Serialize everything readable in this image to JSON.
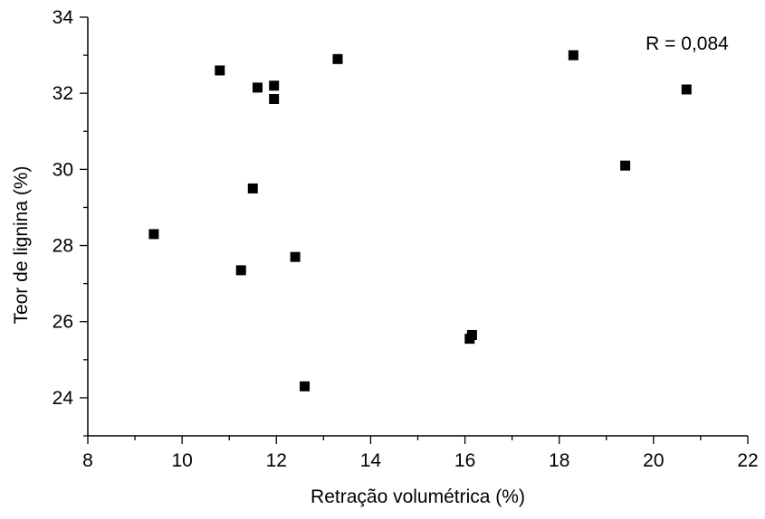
{
  "chart_data": {
    "type": "scatter",
    "xlabel": "Retração volumétrica (%)",
    "ylabel": "Teor de lignina (%)",
    "annotation": "R = 0,084",
    "xlim": [
      8,
      22
    ],
    "ylim": [
      23,
      34
    ],
    "xticks": [
      8,
      10,
      12,
      14,
      16,
      18,
      20,
      22
    ],
    "xtick_labels": [
      "8",
      "10",
      "12",
      "14",
      "16",
      "18",
      "20",
      "22"
    ],
    "yticks": [
      24,
      26,
      28,
      30,
      32,
      34
    ],
    "ytick_labels": [
      "24",
      "26",
      "28",
      "30",
      "32",
      "34"
    ],
    "x_minor_step": 1,
    "y_minor_step": 1,
    "grid": false,
    "marker": "square",
    "marker_color": "#000000",
    "series": [
      {
        "points": [
          {
            "x": 9.4,
            "y": 28.3
          },
          {
            "x": 10.8,
            "y": 32.6
          },
          {
            "x": 11.25,
            "y": 27.35
          },
          {
            "x": 11.5,
            "y": 29.5
          },
          {
            "x": 11.6,
            "y": 32.15
          },
          {
            "x": 11.95,
            "y": 31.85
          },
          {
            "x": 11.95,
            "y": 32.2
          },
          {
            "x": 12.4,
            "y": 27.7
          },
          {
            "x": 12.6,
            "y": 24.3
          },
          {
            "x": 13.3,
            "y": 32.9
          },
          {
            "x": 16.1,
            "y": 25.55
          },
          {
            "x": 16.15,
            "y": 25.65
          },
          {
            "x": 18.3,
            "y": 33.0
          },
          {
            "x": 19.4,
            "y": 30.1
          },
          {
            "x": 20.7,
            "y": 32.1
          }
        ]
      }
    ]
  }
}
